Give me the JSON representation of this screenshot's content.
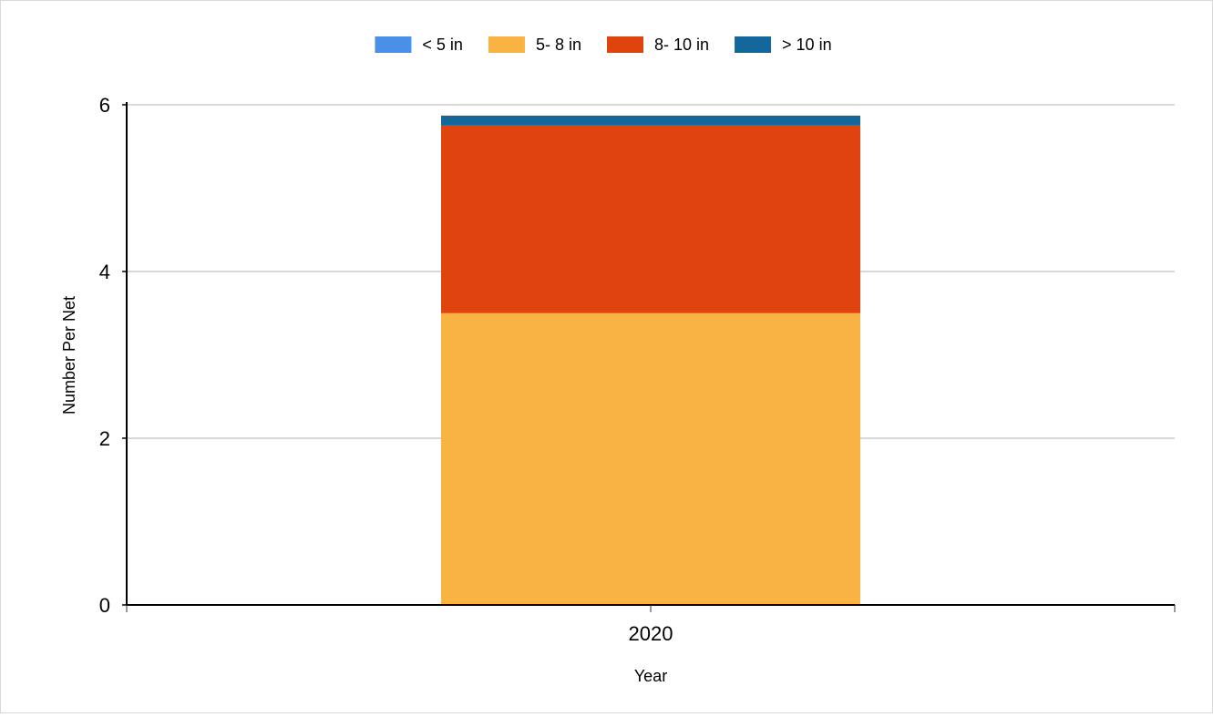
{
  "chart_data": {
    "type": "bar",
    "stacked": true,
    "title": "",
    "xlabel": "Year",
    "ylabel": "Number Per Net",
    "categories": [
      "2020"
    ],
    "series": [
      {
        "name": "< 5 in",
        "color": "#4a90e8",
        "values": [
          0
        ]
      },
      {
        "name": "5- 8 in",
        "color": "#f9b342",
        "values": [
          3.5
        ]
      },
      {
        "name": "8- 10 in",
        "color": "#e0440e",
        "values": [
          2.25
        ]
      },
      {
        "name": "> 10 in",
        "color": "#13679a",
        "values": [
          0.12
        ]
      }
    ],
    "ylim": [
      0,
      6
    ],
    "yticks": [
      "0",
      "2",
      "4",
      "6"
    ],
    "grid": true,
    "legend_position": "top-center"
  }
}
